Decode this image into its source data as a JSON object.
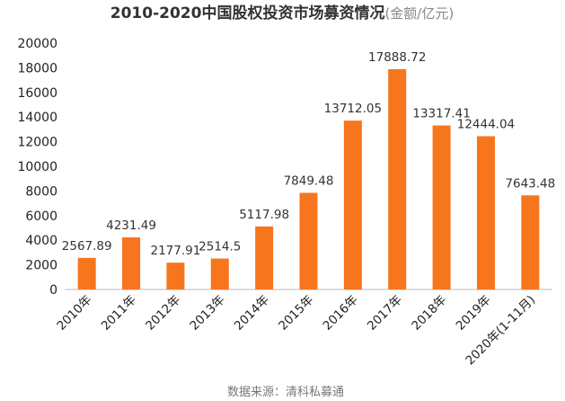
{
  "chart_data": {
    "type": "bar",
    "title": "2010-2020中国股权投资市场募资情况",
    "title_unit": "(金额/亿元)",
    "categories": [
      "2010年",
      "2011年",
      "2012年",
      "2013年",
      "2014年",
      "2015年",
      "2016年",
      "2017年",
      "2018年",
      "2019年",
      "2020年(1-11月)"
    ],
    "values": [
      2567.89,
      4231.49,
      2177.91,
      2514.5,
      5117.98,
      7849.48,
      13712.05,
      17888.72,
      13317.41,
      12444.04,
      7643.48
    ],
    "value_labels": [
      "2567.89",
      "4231.49",
      "2177.91",
      "2514.5",
      "5117.98",
      "7849.48",
      "13712.05",
      "17888.72",
      "13317.41",
      "12444.04",
      "7643.48"
    ],
    "ylim": [
      0,
      20000
    ],
    "yticks": [
      "0",
      "2000",
      "4000",
      "6000",
      "8000",
      "10000",
      "12000",
      "14000",
      "16000",
      "18000",
      "20000"
    ],
    "grid": false,
    "bar_color": "#f7751d",
    "source": "数据来源：清科私募通"
  }
}
